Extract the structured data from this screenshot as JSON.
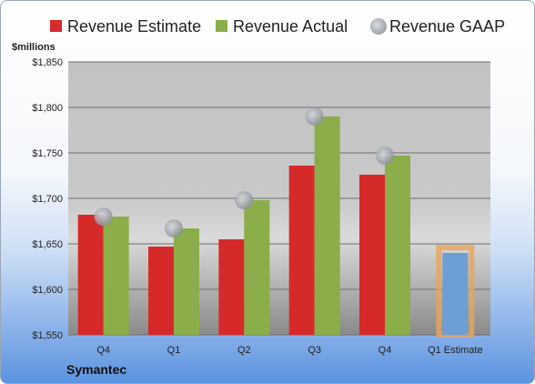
{
  "chart_data": {
    "type": "bar",
    "unit_label": "$millions",
    "categories": [
      "Q4",
      "Q1",
      "Q2",
      "Q3",
      "Q4",
      "Q1 Estimate"
    ],
    "series": [
      {
        "name": "Revenue Estimate",
        "kind": "bar",
        "color": "#d62a2a",
        "values": [
          1682,
          1647,
          1655,
          1736,
          1726,
          null
        ]
      },
      {
        "name": "Revenue Actual",
        "kind": "bar",
        "color": "#8bad4a",
        "values": [
          1680,
          1667,
          1698,
          1790,
          1747,
          null
        ]
      },
      {
        "name": "Revenue GAAP",
        "kind": "marker",
        "color": "#b8bcc4",
        "values": [
          1680,
          1667,
          1698,
          1790,
          1747,
          null
        ]
      }
    ],
    "forecast": {
      "category": "Q1 Estimate",
      "value": 1640,
      "fill": "#6d9fd4",
      "outline": "#e8a55a"
    },
    "ylim": [
      1550,
      1850
    ],
    "yticks": [
      1550,
      1600,
      1650,
      1700,
      1750,
      1800,
      1850
    ],
    "ytick_labels": [
      "$1,550",
      "$1,600",
      "$1,650",
      "$1,700",
      "$1,750",
      "$1,800",
      "$1,850"
    ],
    "legend_position": "top",
    "grid": true
  },
  "company": "Symantec"
}
